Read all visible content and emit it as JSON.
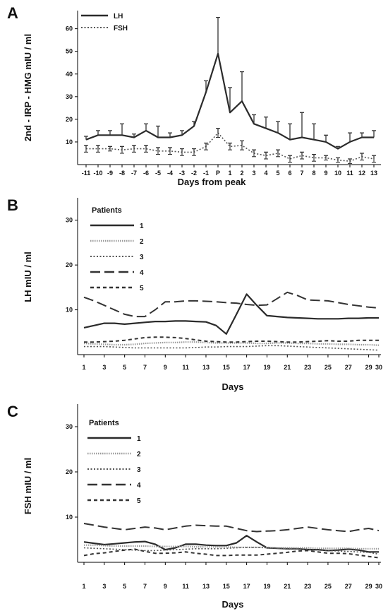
{
  "chart_data": [
    {
      "panel": "A",
      "type": "line",
      "ylabel": "2nd - IRP - HMG mIU / ml",
      "xlabel": "Days from peak",
      "categories": [
        "-11",
        "-10",
        "-9",
        "-8",
        "-7",
        "-6",
        "-5",
        "-4",
        "-3",
        "-2",
        "-1",
        "P",
        "1",
        "2",
        "3",
        "4",
        "5",
        "6",
        "7",
        "8",
        "9",
        "10",
        "11",
        "12",
        "13"
      ],
      "yticks": [
        10,
        20,
        30,
        40,
        50,
        60
      ],
      "ylim": [
        0,
        68
      ],
      "legend": {
        "position": "top-left"
      },
      "series": [
        {
          "name": "LH",
          "style": "solid",
          "values": [
            11,
            13,
            13,
            13,
            12,
            15,
            12,
            12,
            13,
            17,
            32,
            49,
            23,
            28,
            18,
            16,
            14,
            11,
            12,
            11,
            10,
            7,
            10,
            12,
            12
          ],
          "errors": [
            1.5,
            2,
            2,
            5,
            1.5,
            3,
            5,
            2,
            2,
            2,
            5,
            16,
            11,
            13,
            4,
            5,
            5,
            7,
            11,
            7,
            3,
            1,
            4,
            2,
            3
          ]
        },
        {
          "name": "FSH",
          "style": "dotted",
          "values": [
            7,
            7,
            7,
            6.5,
            7,
            7,
            6,
            6,
            5.5,
            5.5,
            8,
            14,
            8,
            8.5,
            5,
            4,
            5,
            2.5,
            4,
            3,
            3,
            2,
            1.5,
            3.5,
            2.5
          ],
          "errors": [
            1.5,
            1.5,
            1,
            1.5,
            1.5,
            1.5,
            1.5,
            1.5,
            1.5,
            1.5,
            1.5,
            2,
            1.5,
            2,
            1.5,
            1.5,
            1.5,
            1.5,
            1.5,
            1.5,
            1,
            1,
            1,
            1.5,
            1.5
          ]
        }
      ]
    },
    {
      "panel": "B",
      "type": "line",
      "ylabel": "LH mIU / ml",
      "xlabel": "Days",
      "x": [
        1,
        2,
        3,
        4,
        5,
        6,
        7,
        8,
        9,
        10,
        11,
        12,
        13,
        14,
        15,
        16,
        17,
        18,
        19,
        20,
        21,
        22,
        23,
        24,
        25,
        26,
        27,
        28,
        29,
        30
      ],
      "xticks": [
        1,
        3,
        5,
        7,
        9,
        11,
        13,
        15,
        17,
        19,
        21,
        23,
        25,
        27,
        29,
        30
      ],
      "yticks": [
        10,
        20,
        30
      ],
      "ylim": [
        0,
        35
      ],
      "legend": {
        "title": "Patients",
        "position": "top-left"
      },
      "series": [
        {
          "name": "1",
          "style": "solid",
          "values": [
            6,
            6.5,
            7,
            7,
            6.8,
            7,
            7.2,
            7.4,
            7.4,
            7.5,
            7.5,
            7.4,
            7.3,
            6.5,
            4.6,
            9,
            13.5,
            11,
            8.7,
            8.5,
            8.3,
            8.2,
            8.1,
            8.0,
            8.0,
            8.0,
            8.1,
            8.1,
            8.2,
            8.2
          ]
        },
        {
          "name": "2",
          "style": "dotted-gray",
          "values": [
            2.5,
            2.4,
            2.3,
            2.2,
            2.2,
            2.3,
            2.5,
            2.6,
            2.7,
            2.7,
            2.8,
            2.8,
            2.7,
            2.6,
            2.6,
            2.6,
            2.6,
            2.5,
            2.5,
            2.6,
            2.6,
            2.5,
            2.5,
            2.4,
            2.4,
            2.3,
            2.3,
            2.2,
            2.2,
            2.1
          ]
        },
        {
          "name": "3",
          "style": "dotted",
          "values": [
            1.8,
            1.8,
            1.8,
            1.7,
            1.6,
            1.5,
            1.5,
            1.5,
            1.5,
            1.5,
            1.5,
            1.6,
            1.7,
            1.7,
            1.8,
            1.8,
            1.8,
            1.9,
            2.0,
            2.0,
            1.9,
            1.8,
            1.7,
            1.6,
            1.5,
            1.4,
            1.3,
            1.2,
            1.1,
            1.0
          ]
        },
        {
          "name": "4",
          "style": "long-dash",
          "values": [
            12.8,
            12,
            11,
            10,
            9,
            8.5,
            8.5,
            10,
            11.8,
            11.8,
            12,
            12,
            11.9,
            11.8,
            11.6,
            11.5,
            11.2,
            11.0,
            11.1,
            12.5,
            13.9,
            13.2,
            12.2,
            12.1,
            12,
            11.6,
            11.2,
            10.9,
            10.6,
            10.4
          ]
        },
        {
          "name": "5",
          "style": "short-dash",
          "values": [
            2.8,
            2.8,
            2.9,
            3.0,
            3.2,
            3.5,
            3.8,
            3.9,
            3.9,
            3.8,
            3.6,
            3.3,
            3.0,
            2.9,
            2.8,
            2.8,
            2.9,
            3.0,
            3.0,
            2.9,
            2.8,
            2.8,
            2.9,
            3.0,
            3.1,
            3.0,
            3.0,
            3.2,
            3.2,
            3.2
          ]
        }
      ]
    },
    {
      "panel": "C",
      "type": "line",
      "ylabel": "FSH mIU / ml",
      "xlabel": "Days",
      "x": [
        1,
        2,
        3,
        4,
        5,
        6,
        7,
        8,
        9,
        10,
        11,
        12,
        13,
        14,
        15,
        16,
        17,
        18,
        19,
        20,
        21,
        22,
        23,
        24,
        25,
        26,
        27,
        28,
        29,
        30
      ],
      "xticks": [
        1,
        3,
        5,
        7,
        9,
        11,
        13,
        15,
        17,
        19,
        21,
        23,
        25,
        27,
        29,
        30
      ],
      "yticks": [
        10,
        20,
        30
      ],
      "ylim": [
        0,
        35
      ],
      "legend": {
        "title": "Patients",
        "position": "top-left"
      },
      "series": [
        {
          "name": "1",
          "style": "solid",
          "values": [
            4.5,
            4.2,
            3.9,
            4.1,
            4.3,
            4.5,
            4.6,
            4.0,
            2.8,
            3.2,
            4.0,
            4.0,
            3.8,
            3.7,
            3.7,
            4.3,
            5.9,
            4.5,
            3.2,
            3.1,
            3.0,
            3.0,
            2.8,
            2.8,
            2.6,
            2.7,
            2.9,
            2.7,
            2.3,
            2.3
          ]
        },
        {
          "name": "2",
          "style": "dotted-gray",
          "values": [
            3.8,
            3.8,
            3.7,
            3.6,
            3.6,
            3.6,
            3.6,
            3.5,
            3.5,
            3.5,
            3.5,
            3.4,
            3.4,
            3.4,
            3.4,
            3.3,
            3.3,
            3.3,
            3.3,
            3.2,
            3.2,
            3.2,
            3.2,
            3.1,
            3.1,
            3.1,
            3.1,
            3.0,
            3.0,
            3.0
          ]
        },
        {
          "name": "3",
          "style": "dotted",
          "values": [
            3.2,
            3.1,
            3.0,
            2.9,
            2.8,
            2.7,
            2.6,
            2.6,
            2.7,
            2.8,
            2.9,
            3.0,
            3.0,
            3.0,
            3.1,
            3.2,
            3.3,
            3.3,
            3.2,
            3.1,
            3.0,
            3.0,
            2.9,
            2.7,
            2.6,
            2.5,
            2.4,
            2.3,
            2.2,
            1.8
          ]
        },
        {
          "name": "4",
          "style": "long-dash",
          "values": [
            8.6,
            8.2,
            7.8,
            7.5,
            7.2,
            7.5,
            7.8,
            7.6,
            7.2,
            7.6,
            8.0,
            8.2,
            8.1,
            8.0,
            8.0,
            7.5,
            7.0,
            6.8,
            6.9,
            7.0,
            7.2,
            7.5,
            7.8,
            7.5,
            7.2,
            7.0,
            6.8,
            7.2,
            7.5,
            7.0
          ]
        },
        {
          "name": "5",
          "style": "short-dash",
          "values": [
            1.5,
            1.9,
            2.1,
            2.4,
            2.7,
            2.9,
            2.4,
            2.0,
            2.0,
            2.1,
            2.3,
            2.0,
            1.8,
            1.5,
            1.5,
            1.6,
            1.6,
            1.6,
            1.8,
            2.0,
            2.2,
            2.5,
            2.6,
            2.3,
            2.0,
            2.0,
            1.9,
            1.6,
            1.3,
            1.0
          ]
        }
      ]
    }
  ]
}
